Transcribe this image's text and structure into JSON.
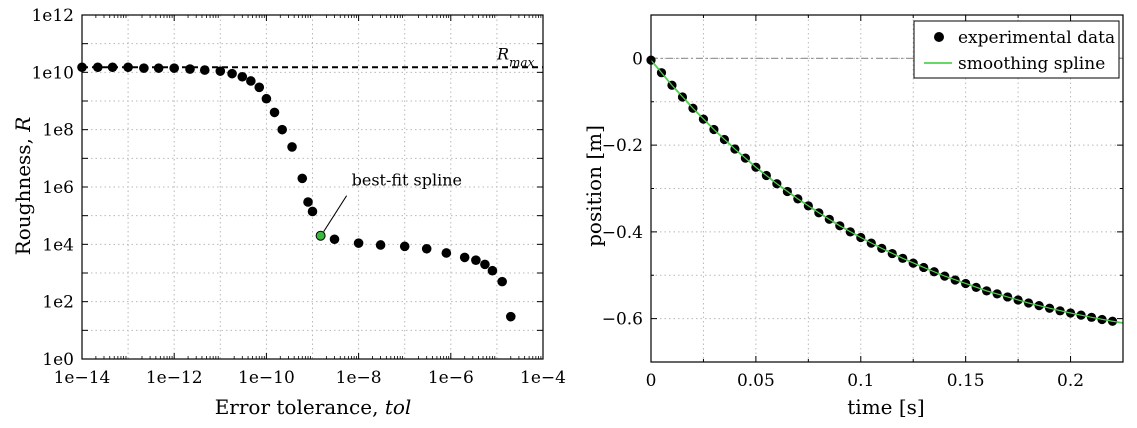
{
  "chart_data": [
    {
      "type": "scatter",
      "x_scale": "log",
      "y_scale": "log",
      "xlim": [
        1e-14,
        0.0001
      ],
      "ylim": [
        1,
        1000000000000.0
      ],
      "xlabel_prefix": "Error tolerance, ",
      "xlabel_var": "tol",
      "ylabel_prefix": "Roughness, ",
      "ylabel_var": "R",
      "x_ticks": [
        {
          "value": 1e-14,
          "label": "1e−14"
        },
        {
          "value": 1e-12,
          "label": "1e−12"
        },
        {
          "value": 1e-10,
          "label": "1e−10"
        },
        {
          "value": 1e-08,
          "label": "1e−8"
        },
        {
          "value": 1e-06,
          "label": "1e−6"
        },
        {
          "value": 0.0001,
          "label": "1e−4"
        }
      ],
      "y_ticks": [
        {
          "value": 1,
          "label": "1e0"
        },
        {
          "value": 100,
          "label": "1e2"
        },
        {
          "value": 10000,
          "label": "1e4"
        },
        {
          "value": 1000000,
          "label": "1e6"
        },
        {
          "value": 100000000,
          "label": "1e8"
        },
        {
          "value": 10000000000,
          "label": "1e10"
        },
        {
          "value": 1000000000000,
          "label": "1e12"
        }
      ],
      "grid": true,
      "reference_line": {
        "y": 15000000000,
        "label_base": "R",
        "label_sub": "max",
        "style": "dashed"
      },
      "points": [
        {
          "x": 1e-14,
          "y": 15000000000
        },
        {
          "x": 2.2e-14,
          "y": 15000000000
        },
        {
          "x": 4.6e-14,
          "y": 15000000000
        },
        {
          "x": 1e-13,
          "y": 15000000000
        },
        {
          "x": 2.2e-13,
          "y": 14000000000
        },
        {
          "x": 4.6e-13,
          "y": 14000000000
        },
        {
          "x": 1e-12,
          "y": 14000000000
        },
        {
          "x": 2.2e-12,
          "y": 13000000000
        },
        {
          "x": 4.6e-12,
          "y": 12000000000
        },
        {
          "x": 1e-11,
          "y": 11000000000
        },
        {
          "x": 1.8e-11,
          "y": 9000000000
        },
        {
          "x": 3e-11,
          "y": 7000000000
        },
        {
          "x": 4.6e-11,
          "y": 5000000000
        },
        {
          "x": 7e-11,
          "y": 3000000000
        },
        {
          "x": 1e-10,
          "y": 1200000000
        },
        {
          "x": 1.5e-10,
          "y": 400000000
        },
        {
          "x": 2.2e-10,
          "y": 100000000
        },
        {
          "x": 3.6e-10,
          "y": 25000000
        },
        {
          "x": 6e-10,
          "y": 2000000
        },
        {
          "x": 8e-10,
          "y": 300000
        },
        {
          "x": 1e-09,
          "y": 140000
        },
        {
          "x": 3e-09,
          "y": 15000
        },
        {
          "x": 1e-08,
          "y": 11000
        },
        {
          "x": 3e-08,
          "y": 9500
        },
        {
          "x": 1e-07,
          "y": 8500
        },
        {
          "x": 3e-07,
          "y": 7000
        },
        {
          "x": 8e-07,
          "y": 5000
        },
        {
          "x": 2e-06,
          "y": 3500
        },
        {
          "x": 3.5e-06,
          "y": 2800
        },
        {
          "x": 5.5e-06,
          "y": 2000
        },
        {
          "x": 8e-06,
          "y": 1200
        },
        {
          "x": 1.3e-05,
          "y": 500
        },
        {
          "x": 2e-05,
          "y": 30
        }
      ],
      "highlight": {
        "x": 1.5e-09,
        "y": 20000,
        "color": "#3cb83c"
      },
      "annotation": {
        "text": "best-fit spline",
        "x": 1.5e-09,
        "y": 20000
      }
    },
    {
      "type": "line",
      "xlim": [
        0,
        0.225
      ],
      "ylim": [
        -0.7,
        0.1
      ],
      "xlabel": "time  [s]",
      "ylabel": "position  [m]",
      "x_ticks": [
        {
          "value": 0,
          "label": "0"
        },
        {
          "value": 0.05,
          "label": "0.05"
        },
        {
          "value": 0.1,
          "label": "0.1"
        },
        {
          "value": 0.15,
          "label": "0.15"
        },
        {
          "value": 0.2,
          "label": "0.2"
        }
      ],
      "y_ticks": [
        {
          "value": 0,
          "label": "0"
        },
        {
          "value": -0.2,
          "label": "−0.2"
        },
        {
          "value": -0.4,
          "label": "−0.4"
        },
        {
          "value": -0.6,
          "label": "−0.6"
        }
      ],
      "grid": true,
      "legend": {
        "placement": "top-right",
        "entries": [
          "experimental data",
          "smoothing spline"
        ]
      },
      "zero_line": {
        "y": 0,
        "style": "dash-dot"
      },
      "series": [
        {
          "name": "experimental data",
          "kind": "markers",
          "color": "#000000",
          "x": [
            0.0,
            0.005,
            0.01,
            0.015,
            0.02,
            0.025,
            0.03,
            0.035,
            0.04,
            0.045,
            0.05,
            0.055,
            0.06,
            0.065,
            0.07,
            0.075,
            0.08,
            0.085,
            0.09,
            0.095,
            0.1,
            0.105,
            0.11,
            0.115,
            0.12,
            0.125,
            0.13,
            0.135,
            0.14,
            0.145,
            0.15,
            0.155,
            0.16,
            0.165,
            0.17,
            0.175,
            0.18,
            0.185,
            0.19,
            0.195,
            0.2,
            0.205,
            0.21,
            0.215,
            0.22
          ],
          "y": [
            -0.004,
            -0.033,
            -0.062,
            -0.089,
            -0.115,
            -0.14,
            -0.164,
            -0.187,
            -0.209,
            -0.23,
            -0.251,
            -0.27,
            -0.289,
            -0.307,
            -0.324,
            -0.34,
            -0.356,
            -0.371,
            -0.386,
            -0.4,
            -0.413,
            -0.426,
            -0.438,
            -0.45,
            -0.461,
            -0.472,
            -0.482,
            -0.492,
            -0.502,
            -0.511,
            -0.519,
            -0.528,
            -0.536,
            -0.543,
            -0.55,
            -0.557,
            -0.564,
            -0.57,
            -0.576,
            -0.582,
            -0.587,
            -0.592,
            -0.597,
            -0.602,
            -0.606
          ]
        },
        {
          "name": "smoothing spline",
          "kind": "line",
          "color": "#4fd24f",
          "x": [
            0.0,
            0.01,
            0.02,
            0.03,
            0.04,
            0.05,
            0.06,
            0.07,
            0.08,
            0.09,
            0.1,
            0.11,
            0.12,
            0.13,
            0.14,
            0.15,
            0.16,
            0.17,
            0.18,
            0.19,
            0.2,
            0.21,
            0.22,
            0.225
          ],
          "y": [
            -0.004,
            -0.062,
            -0.115,
            -0.164,
            -0.209,
            -0.251,
            -0.289,
            -0.324,
            -0.356,
            -0.386,
            -0.413,
            -0.438,
            -0.461,
            -0.482,
            -0.502,
            -0.519,
            -0.536,
            -0.55,
            -0.564,
            -0.576,
            -0.587,
            -0.597,
            -0.606,
            -0.61
          ]
        }
      ]
    }
  ]
}
